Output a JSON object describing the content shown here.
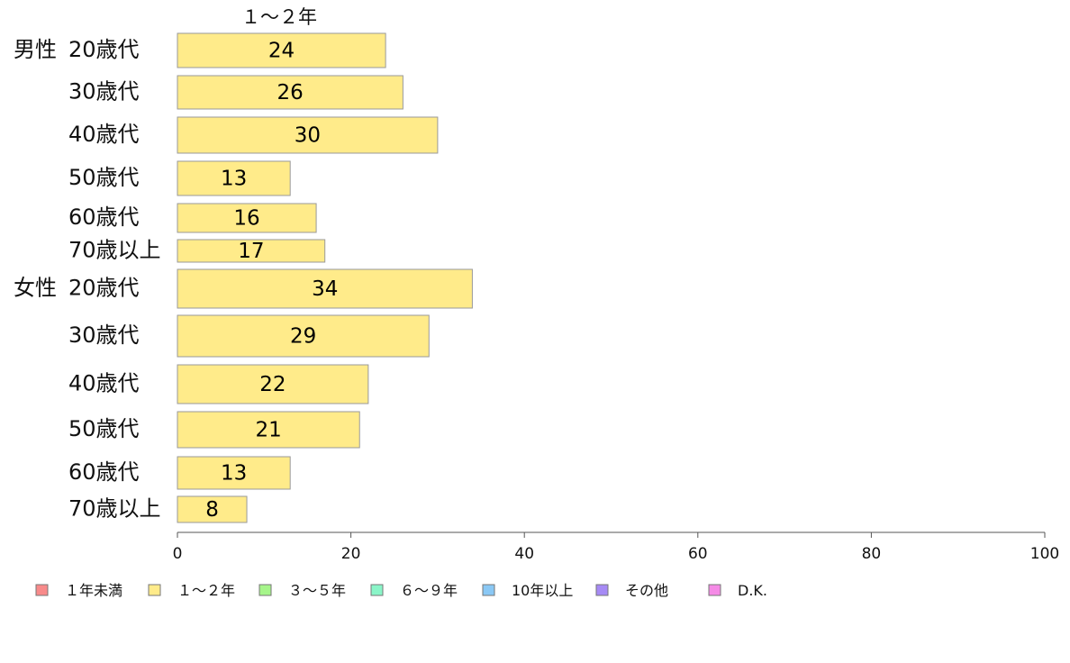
{
  "chart_data": {
    "type": "bar",
    "orientation": "horizontal",
    "column_title": "１～２年",
    "groups": [
      {
        "name": "男性",
        "categories": [
          "20歳代",
          "30歳代",
          "40歳代",
          "50歳代",
          "60歳代",
          "70歳以上"
        ],
        "values": [
          24,
          26,
          30,
          13,
          16,
          17
        ]
      },
      {
        "name": "女性",
        "categories": [
          "20歳代",
          "30歳代",
          "40歳代",
          "50歳代",
          "60歳代",
          "70歳以上"
        ],
        "values": [
          34,
          29,
          22,
          21,
          13,
          8
        ]
      }
    ],
    "xlim": [
      0,
      100
    ],
    "xticks": [
      0,
      20,
      40,
      60,
      80,
      100
    ],
    "grid": false,
    "legend_placement": "bottom",
    "legend": [
      {
        "label": "１年未満",
        "color": "#f88a8a"
      },
      {
        "label": "１～２年",
        "color": "#ffeb8a"
      },
      {
        "label": "３～５年",
        "color": "#a6f58a"
      },
      {
        "label": "６～９年",
        "color": "#8af5c8"
      },
      {
        "label": "10年以上",
        "color": "#8ac8f5"
      },
      {
        "label": "その他",
        "color": "#a68af5"
      },
      {
        "label": "D.K.",
        "color": "#f58ae6"
      }
    ],
    "bar_color": "#ffeb8a"
  }
}
